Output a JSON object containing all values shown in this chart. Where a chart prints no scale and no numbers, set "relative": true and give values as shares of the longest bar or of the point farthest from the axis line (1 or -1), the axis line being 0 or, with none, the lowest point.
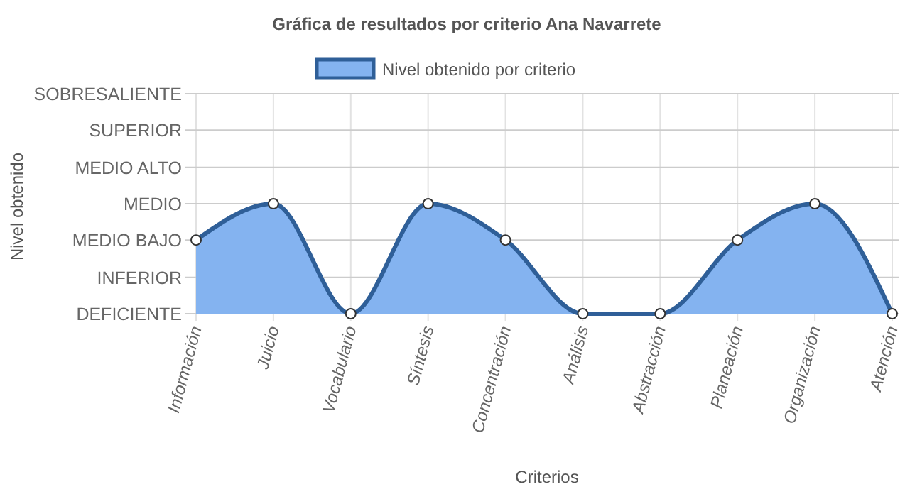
{
  "chart_data": {
    "type": "area",
    "title": "Gráfica de resultados por criterio Ana Navarrete",
    "xlabel": "Criterios",
    "annotations": [
      "Nivel obtenido"
    ],
    "categories": [
      "Información",
      "Juicio",
      "Vocabulario",
      "Síntesis",
      "Concentración",
      "Análisis",
      "Abstracción",
      "Planeación",
      "Organización",
      "Atención"
    ],
    "series": [
      {
        "name": "Nivel obtenido por criterio",
        "color": "#2f5f98",
        "values": [
          0.67,
          1,
          0,
          1,
          0.67,
          0,
          0,
          0.67,
          1,
          0
        ]
      }
    ],
    "relative": true,
    "ref_lines": [
      {
        "axis": "y",
        "value": 0,
        "label": "DEFICIENTE",
        "color": "#cccccc"
      },
      {
        "axis": "y",
        "value": 0.33,
        "label": "INFERIOR",
        "color": "#cccccc"
      },
      {
        "axis": "y",
        "value": 0.67,
        "label": "MEDIO BAJO",
        "color": "#cccccc"
      },
      {
        "axis": "y",
        "value": 1,
        "label": "MEDIO",
        "color": "#cccccc"
      },
      {
        "axis": "y",
        "value": 1.33,
        "label": "MEDIO ALTO",
        "color": "#cccccc"
      },
      {
        "axis": "y",
        "value": 1.67,
        "label": "SUPERIOR",
        "color": "#cccccc"
      },
      {
        "axis": "y",
        "value": 2,
        "label": "SOBRESALIENTE",
        "color": "#cccccc"
      }
    ],
    "grid": "x",
    "legend": "top",
    "marker": "circle",
    "line_style": "solid"
  }
}
